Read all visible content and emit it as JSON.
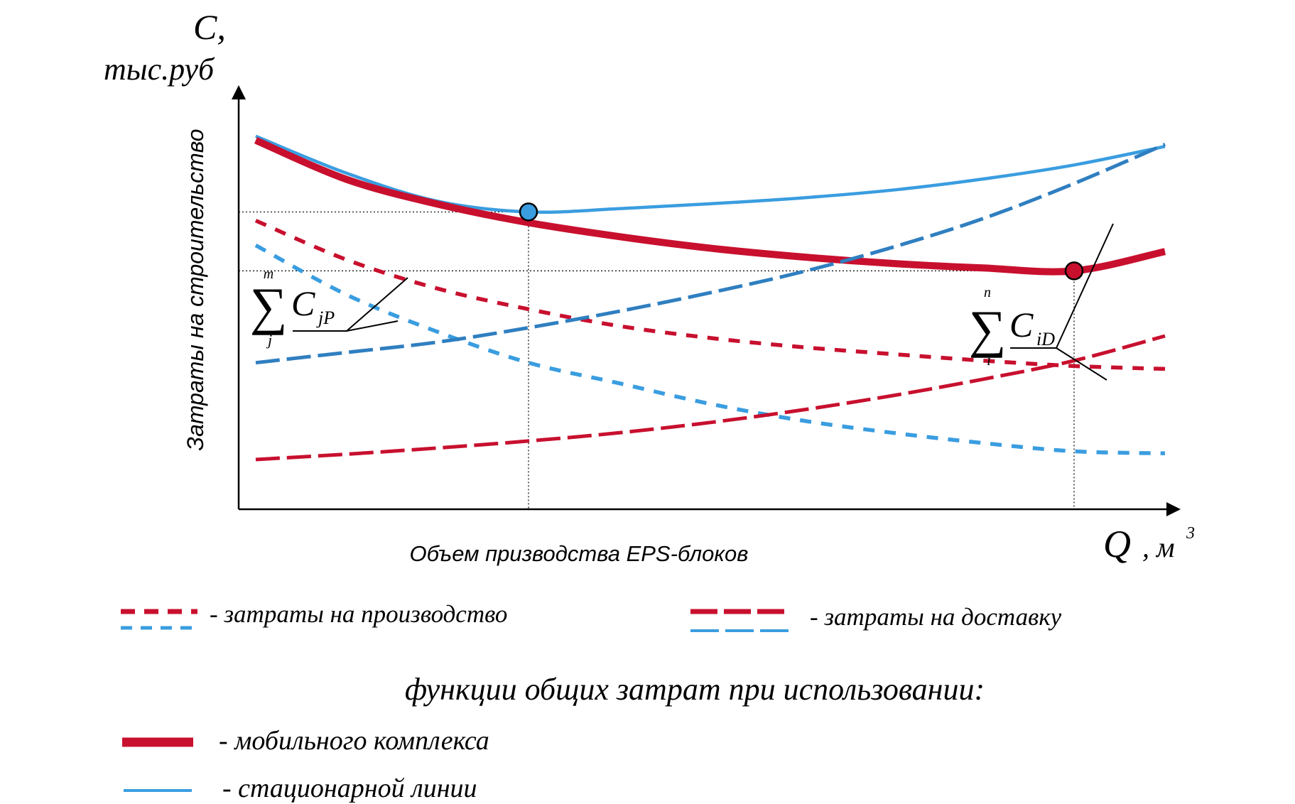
{
  "chart_data": {
    "type": "line",
    "title": "",
    "ylabel_symbol": "C,",
    "ylabel_unit": "тыс.руб",
    "ylabel": "Затраты на строительство",
    "xlabel_symbol": "Q",
    "xlabel_unit": ", м",
    "xlabel_unit_sup": "3",
    "xlabel": "Объем призводства EPS-блоков",
    "grid": false,
    "xlim": [
      0,
      100
    ],
    "ylim": [
      0,
      100
    ],
    "x": [
      0,
      10,
      20,
      30,
      40,
      50,
      60,
      70,
      80,
      90,
      100
    ],
    "series": [
      {
        "key": "total_stationary",
        "style": "solid-thin",
        "color": "#3a9de0",
        "values": [
          88.5,
          79.5,
          72.7,
          70.1,
          70.9,
          72.1,
          73.5,
          75.4,
          78.1,
          81.5,
          86.0
        ]
      },
      {
        "key": "total_mobile",
        "style": "solid-thick",
        "color": "#c8102e",
        "values": [
          87.5,
          78.0,
          72.0,
          67.5,
          64.1,
          61.3,
          59.2,
          57.6,
          56.5,
          55.8,
          60.5
        ]
      },
      {
        "key": "production_mobile",
        "style": "dashed-short",
        "color": "#c8102e",
        "values": [
          68.0,
          58.5,
          51.5,
          46.5,
          42.4,
          39.5,
          37.3,
          35.6,
          34.0,
          32.7,
          32.0
        ]
      },
      {
        "key": "production_stationary",
        "style": "dashed-short",
        "color": "#3a9de0",
        "values": [
          62.0,
          50.0,
          41.0,
          33.5,
          28.5,
          23.5,
          19.5,
          16.5,
          14.0,
          12.0,
          11.5
        ]
      },
      {
        "key": "delivery_stationary",
        "style": "dashed-long",
        "color": "#2f7fc0",
        "values": [
          33.5,
          36.0,
          38.5,
          42.0,
          46.0,
          50.5,
          55.5,
          61.5,
          68.5,
          77.0,
          86.5
        ]
      },
      {
        "key": "delivery_mobile",
        "style": "dashed-long",
        "color": "#c8102e",
        "values": [
          10.0,
          11.3,
          12.8,
          14.5,
          16.5,
          19.0,
          22.0,
          25.5,
          29.5,
          34.0,
          40.0
        ]
      }
    ],
    "optimum_points": [
      {
        "key": "stationary",
        "x": 30,
        "y": 70.1,
        "color": "#3a9de0"
      },
      {
        "key": "mobile",
        "x": 90,
        "y": 55.8,
        "color": "#c8102e"
      }
    ]
  },
  "annotations": {
    "sum_p": {
      "sigma": "∑",
      "upper": "m",
      "lower": "j",
      "term": "C",
      "sub": "jP"
    },
    "sum_d": {
      "sigma": "∑",
      "upper": "n",
      "lower": "i",
      "term": "C",
      "sub": "iD"
    }
  },
  "legend": {
    "production": "- затраты на производство",
    "delivery": "- затраты на доставку",
    "heading": "функции общих затрат при использовании:",
    "mobile": "- мобильного комплекса",
    "stationary": "- стационарной линии"
  },
  "colors": {
    "red": "#c8102e",
    "blue": "#3a9de0",
    "blue_dark": "#2f7fc0",
    "axis": "#000000"
  }
}
